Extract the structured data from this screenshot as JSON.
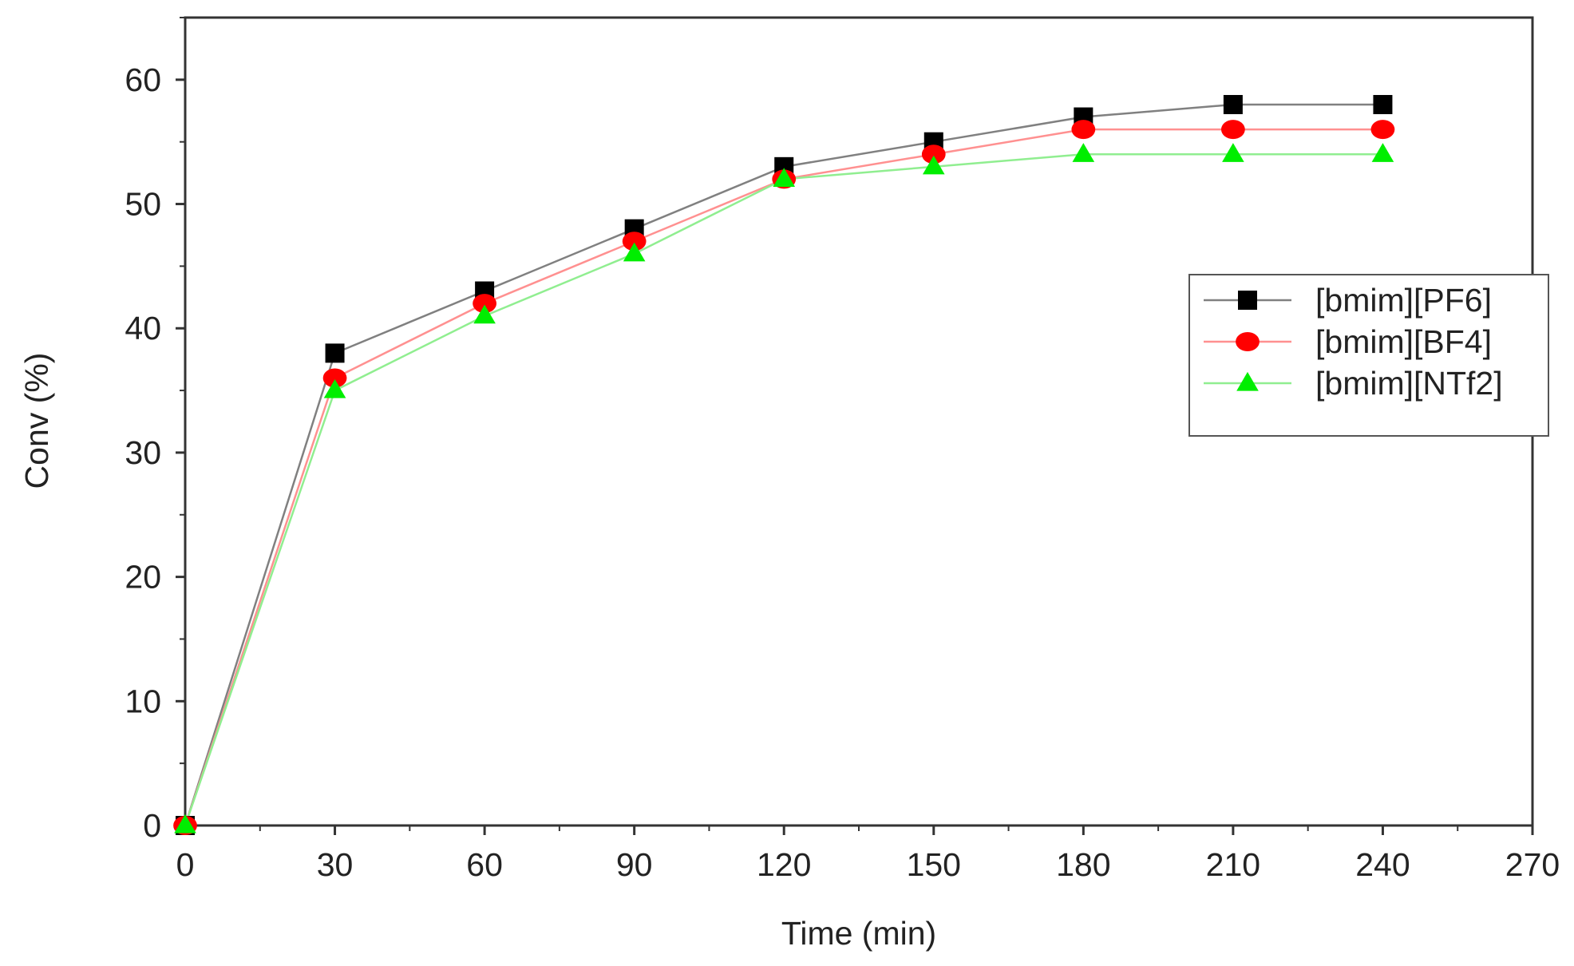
{
  "chart_data": {
    "type": "line",
    "title": "",
    "xlabel": "Time (min)",
    "ylabel": "Conv (%)",
    "xlim": [
      0,
      270
    ],
    "ylim": [
      0,
      65
    ],
    "xticks": [
      0,
      30,
      60,
      90,
      120,
      150,
      180,
      210,
      240,
      270
    ],
    "yticks": [
      0,
      10,
      20,
      30,
      40,
      50,
      60
    ],
    "grid": false,
    "legend_position": "right",
    "x": [
      0,
      30,
      60,
      90,
      120,
      150,
      180,
      210,
      240
    ],
    "series": [
      {
        "name": "[bmim][PF6]",
        "marker": "square",
        "color": "#000000",
        "line_color": "#808080",
        "values": [
          0,
          38,
          43,
          48,
          53,
          55,
          57,
          58,
          58
        ]
      },
      {
        "name": "[bmim][BF4]",
        "marker": "circle",
        "color": "#ff0000",
        "line_color": "#ff9090",
        "values": [
          0,
          36,
          42,
          47,
          52,
          54,
          56,
          56,
          56
        ]
      },
      {
        "name": "[bmim][NTf2]",
        "marker": "triangle",
        "color": "#00ee00",
        "line_color": "#90ee90",
        "values": [
          0,
          35,
          41,
          46,
          52,
          53,
          54,
          54,
          54
        ]
      }
    ]
  }
}
